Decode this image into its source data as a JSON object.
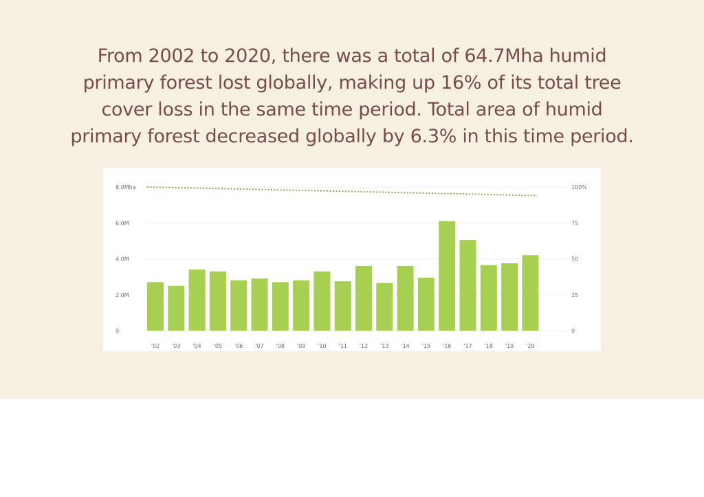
{
  "headline": {
    "line1": "From 2002 to 2020, there was a total of 64.7Mha humid",
    "line2": "primary forest lost globally, making up 16% of its total tree",
    "line3": "cover loss in the same time period. Total area of humid",
    "line4": "primary forest decreased globally by 6.3% in this time period."
  },
  "colors": {
    "background": "#f6f0e3",
    "headline": "#7a4b4d",
    "bar": "#a7cf52",
    "trend_line": "#8aa84a",
    "grid": "#c9c9c9"
  },
  "chart_data": {
    "type": "bar",
    "categories": [
      "'02",
      "'03",
      "'04",
      "'05",
      "'06",
      "'07",
      "'08",
      "'09",
      "'10",
      "'11",
      "'12",
      "'13",
      "'14",
      "'15",
      "'16",
      "'17",
      "'18",
      "'19",
      "'20"
    ],
    "series": [
      {
        "values": [
          2.7,
          2.5,
          3.4,
          3.3,
          2.8,
          2.9,
          2.7,
          2.8,
          3.3,
          2.75,
          3.6,
          2.65,
          3.6,
          2.95,
          6.1,
          5.05,
          3.65,
          3.75,
          4.2
        ]
      }
    ],
    "secondary_series": {
      "type": "line",
      "style": "dotted",
      "axis": "right",
      "x_start": "'02",
      "x_end": "'20",
      "values_start": 100,
      "values_end": 94
    },
    "left_axis": {
      "ylim": [
        0,
        8
      ],
      "ticks": [
        0,
        2,
        4,
        6,
        8
      ],
      "tick_labels": [
        "0",
        "2.0M",
        "4.0M",
        "6.0M",
        "8.0Mha"
      ]
    },
    "right_axis": {
      "ylim": [
        0,
        100
      ],
      "ticks": [
        0,
        25,
        50,
        75,
        100
      ],
      "tick_labels": [
        "0",
        "25",
        "50",
        "75",
        "100%"
      ]
    },
    "grid": true
  }
}
